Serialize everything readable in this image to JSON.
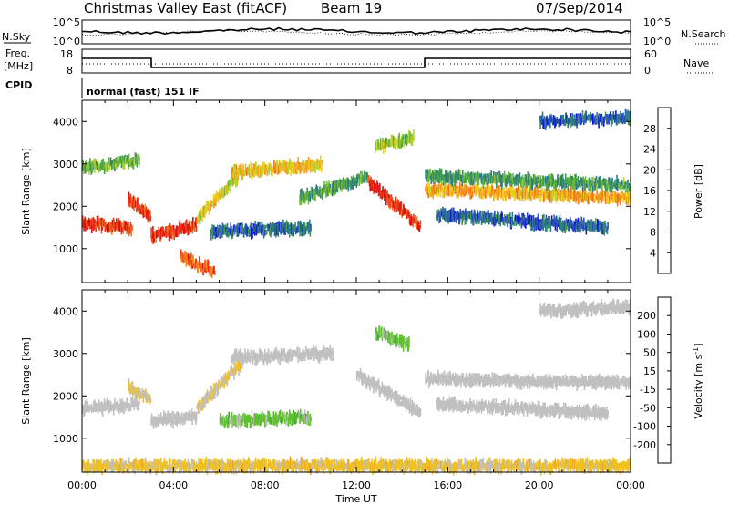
{
  "header": {
    "radar_title": "Christmas Valley East (fitACF)",
    "beam_label": "Beam 19",
    "date": "07/Sep/2014"
  },
  "panels": {
    "nsky": {
      "left_label": "N.Sky",
      "left_ticks": [
        "10^5",
        "10^0"
      ],
      "right_label": "N.Search",
      "right_ticks": [
        "10^5",
        "10^0"
      ]
    },
    "freq": {
      "left_label_line1": "Freq.",
      "left_label_line2": "[MHz]",
      "left_ticks": [
        "18",
        "8"
      ],
      "right_label": "Nave",
      "right_ticks": [
        "60",
        "0"
      ]
    },
    "cpid": {
      "label": "CPID",
      "value": "normal (fast) 151 IF"
    }
  },
  "chart_data": [
    {
      "type": "heatmap",
      "title": "",
      "xlabel": "Time UT",
      "ylabel": "Slant Range [km]",
      "x_ticks": [
        "00:00",
        "04:00",
        "08:00",
        "12:00",
        "16:00",
        "20:00",
        "00:00"
      ],
      "xlim_hours": [
        0,
        24
      ],
      "y_ticks": [
        1000,
        2000,
        3000,
        4000
      ],
      "ylim_km": [
        200,
        4500
      ],
      "colorbar": {
        "label": "Power [dB]",
        "ticks": [
          4,
          8,
          12,
          16,
          20,
          24,
          28
        ],
        "colors": [
          "#1010e0",
          "#2a4fb8",
          "#2e7a8a",
          "#3c9a50",
          "#6ab838",
          "#b8d030",
          "#f0d020",
          "#f8a020",
          "#f07020",
          "#e84018",
          "#e01010"
        ]
      },
      "echo_bands": [
        {
          "t_start": 0.0,
          "t_end": 2.2,
          "range_start": 1600,
          "range_end": 1500,
          "level": 26
        },
        {
          "t_start": 2.0,
          "t_end": 3.0,
          "range_start": 2200,
          "range_end": 1700,
          "level": 25
        },
        {
          "t_start": 0.0,
          "t_end": 2.5,
          "range_start": 2900,
          "range_end": 3100,
          "level": 12
        },
        {
          "t_start": 3.0,
          "t_end": 5.0,
          "range_start": 1300,
          "range_end": 1550,
          "level": 26
        },
        {
          "t_start": 4.3,
          "t_end": 5.8,
          "range_start": 800,
          "range_end": 450,
          "level": 24
        },
        {
          "t_start": 5.0,
          "t_end": 6.8,
          "range_start": 1700,
          "range_end": 2700,
          "level": 16
        },
        {
          "t_start": 6.5,
          "t_end": 10.5,
          "range_start": 2800,
          "range_end": 3000,
          "level": 18
        },
        {
          "t_start": 5.6,
          "t_end": 10.0,
          "range_start": 1400,
          "range_end": 1500,
          "level": 6
        },
        {
          "t_start": 9.5,
          "t_end": 12.5,
          "range_start": 2200,
          "range_end": 2700,
          "level": 10
        },
        {
          "t_start": 12.5,
          "t_end": 14.8,
          "range_start": 2600,
          "range_end": 1500,
          "level": 27
        },
        {
          "t_start": 12.8,
          "t_end": 14.5,
          "range_start": 3400,
          "range_end": 3600,
          "level": 14
        },
        {
          "t_start": 15.0,
          "t_end": 24.0,
          "range_start": 2400,
          "range_end": 2200,
          "level": 20
        },
        {
          "t_start": 15.0,
          "t_end": 24.0,
          "range_start": 2700,
          "range_end": 2500,
          "level": 10
        },
        {
          "t_start": 15.5,
          "t_end": 23.0,
          "range_start": 1800,
          "range_end": 1500,
          "level": 6
        },
        {
          "t_start": 20.0,
          "t_end": 24.0,
          "range_start": 4000,
          "range_end": 4100,
          "level": 6
        }
      ]
    },
    {
      "type": "heatmap",
      "title": "",
      "xlabel": "Time UT",
      "ylabel": "Slant Range [km]",
      "x_ticks": [
        "00:00",
        "04:00",
        "08:00",
        "12:00",
        "16:00",
        "20:00",
        "00:00"
      ],
      "xlim_hours": [
        0,
        24
      ],
      "y_ticks": [
        1000,
        2000,
        3000,
        4000
      ],
      "ylim_km": [
        200,
        4500
      ],
      "colorbar": {
        "label_main": "Velocity [m s",
        "label_sup": "-1",
        "label_end": "]",
        "ticks": [
          "200",
          "100",
          "50",
          "15",
          "-15",
          "-50",
          "-100",
          "-200"
        ],
        "colors": [
          "#2020c0",
          "#2850b0",
          "#2a7880",
          "#30a040",
          "#60c030",
          "#c0c0c0",
          "#c0c0c0",
          "#f0c020",
          "#f0a020",
          "#f07020",
          "#e84010",
          "#e01010"
        ]
      },
      "echo_bands": [
        {
          "t_start": 0.0,
          "t_end": 2.5,
          "range_start": 1700,
          "range_end": 1800,
          "level": 0
        },
        {
          "t_start": 2.0,
          "t_end": 3.0,
          "range_start": 2200,
          "range_end": 1900,
          "level": -40
        },
        {
          "t_start": 3.0,
          "t_end": 5.0,
          "range_start": 1400,
          "range_end": 1500,
          "level": 0
        },
        {
          "t_start": 5.0,
          "t_end": 7.0,
          "range_start": 1700,
          "range_end": 2800,
          "level": -40
        },
        {
          "t_start": 6.0,
          "t_end": 10.0,
          "range_start": 1400,
          "range_end": 1500,
          "level": 60
        },
        {
          "t_start": 6.5,
          "t_end": 11.0,
          "range_start": 2900,
          "range_end": 3000,
          "level": 5
        },
        {
          "t_start": 12.0,
          "t_end": 14.8,
          "range_start": 2500,
          "range_end": 1600,
          "level": 0
        },
        {
          "t_start": 12.8,
          "t_end": 14.3,
          "range_start": 3500,
          "range_end": 3200,
          "level": 60
        },
        {
          "t_start": 15.0,
          "t_end": 24.0,
          "range_start": 2400,
          "range_end": 2300,
          "level": 0
        },
        {
          "t_start": 15.5,
          "t_end": 23.0,
          "range_start": 1800,
          "range_end": 1600,
          "level": 0
        },
        {
          "t_start": 20.0,
          "t_end": 24.0,
          "range_start": 4000,
          "range_end": 4100,
          "level": 0
        },
        {
          "t_start": 0.0,
          "t_end": 24.0,
          "range_start": 350,
          "range_end": 350,
          "level": -60
        }
      ]
    }
  ]
}
